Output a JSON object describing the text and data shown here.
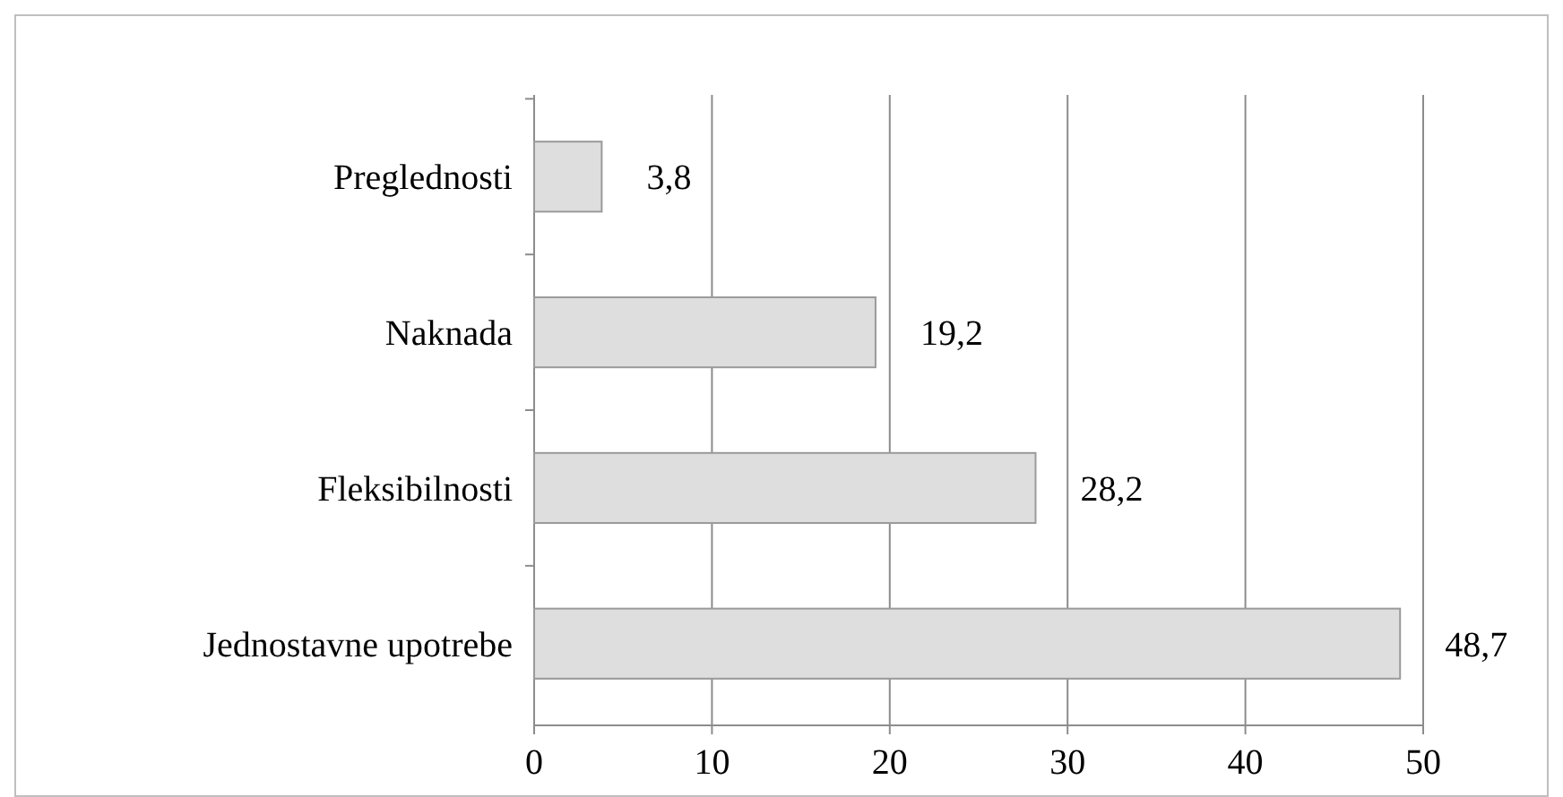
{
  "chart_data": {
    "type": "bar",
    "orientation": "horizontal",
    "categories": [
      "Preglednosti",
      "Naknada",
      "Fleksibilnosti",
      "Jednostavne upotrebe"
    ],
    "values": [
      3.8,
      19.2,
      28.2,
      48.7
    ],
    "color": "#dedede",
    "value_labels": [
      "3,8",
      "19,2",
      "28,2",
      "48,7"
    ],
    "xlim": [
      0,
      50
    ],
    "xticks": [
      0,
      10,
      20,
      30,
      40,
      50
    ],
    "grid": "x"
  }
}
